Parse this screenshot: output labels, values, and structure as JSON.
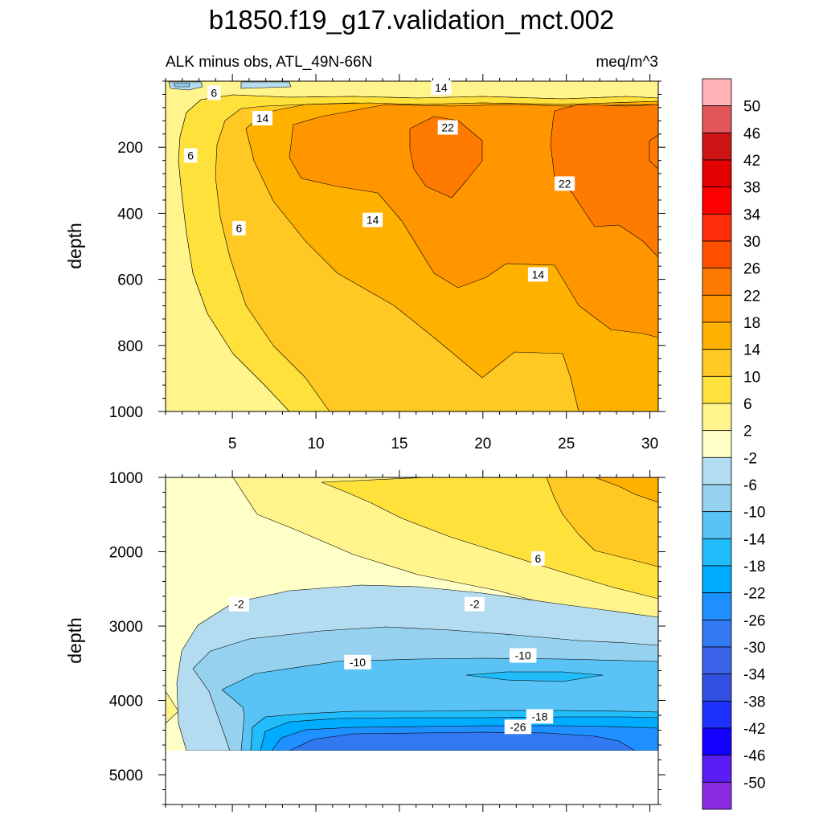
{
  "chart_data": {
    "type": "contour",
    "title": "b1850.f19_g17.validation_mct.002",
    "subtitle_left": "ALK minus obs, ATL_49N-66N",
    "subtitle_right": "meq/m^3",
    "panels": [
      {
        "name": "upper",
        "ylabel": "depth",
        "ylim": [
          0,
          1000
        ],
        "yticks": [
          200,
          400,
          600,
          800,
          1000
        ],
        "xlim": [
          1,
          30.5
        ],
        "xticks": [
          5,
          10,
          15,
          20,
          25,
          30
        ],
        "contour_labels": [
          {
            "text": "6",
            "x": 3.9,
            "y": 35
          },
          {
            "text": "14",
            "x": 17.5,
            "y": 20
          },
          {
            "text": "14",
            "x": 6.8,
            "y": 112
          },
          {
            "text": "22",
            "x": 17.9,
            "y": 140
          },
          {
            "text": "6",
            "x": 2.5,
            "y": 225
          },
          {
            "text": "22",
            "x": 24.9,
            "y": 310
          },
          {
            "text": "14",
            "x": 13.4,
            "y": 420
          },
          {
            "text": "6",
            "x": 5.4,
            "y": 445
          },
          {
            "text": "14",
            "x": 23.3,
            "y": 585
          }
        ]
      },
      {
        "name": "lower",
        "ylabel": "depth",
        "ylim": [
          1000,
          5400
        ],
        "yticks": [
          1000,
          2000,
          3000,
          4000,
          5000
        ],
        "xlim": [
          1,
          30.5
        ],
        "data_bottom_depth": 4650,
        "contour_labels": [
          {
            "text": "6",
            "x": 23.3,
            "y": 2090
          },
          {
            "text": "-2",
            "x": 5.4,
            "y": 2705
          },
          {
            "text": "-2",
            "x": 19.5,
            "y": 2705
          },
          {
            "text": "-10",
            "x": 12.5,
            "y": 3485
          },
          {
            "text": "-10",
            "x": 22.4,
            "y": 3395
          },
          {
            "text": "-18",
            "x": 23.4,
            "y": 4215
          },
          {
            "text": "-26",
            "x": 22.1,
            "y": 4355
          }
        ]
      }
    ],
    "colorbar": {
      "labels": [
        "50",
        "46",
        "42",
        "38",
        "34",
        "30",
        "26",
        "22",
        "18",
        "14",
        "10",
        "6",
        "2",
        "-2",
        "-6",
        "-10",
        "-14",
        "-18",
        "-22",
        "-26",
        "-30",
        "-34",
        "-38",
        "-42",
        "-46",
        "-50"
      ],
      "colors": [
        "#ffb3b6",
        "#e25659",
        "#cc1414",
        "#e30000",
        "#ff0000",
        "#ff2d0a",
        "#ff5000",
        "#ff7a00",
        "#ff9600",
        "#ffb100",
        "#ffc823",
        "#ffe13c",
        "#fff58c",
        "#ffffc8",
        "#b4dcf0",
        "#96d2f0",
        "#5ac3f5",
        "#21bcfa",
        "#00acff",
        "#1e90ff",
        "#3278f0",
        "#3c64eb",
        "#3250e1",
        "#1e32ff",
        "#1400ff",
        "#5a1ef5",
        "#8b2be2"
      ]
    },
    "fill_colors": {
      "c_m26": "#3278f0",
      "c_m22": "#1e90ff",
      "c_m18": "#00acff",
      "c_m14": "#21bcfa",
      "c_m10": "#5ac3f5",
      "c_m6": "#96d2f0",
      "c_m2": "#b4dcf0",
      "c_2": "#ffffc8",
      "c_6": "#fff58c",
      "c_10": "#ffe13c",
      "c_14": "#ffc823",
      "c_18": "#ffb100",
      "c_22": "#ff9600",
      "c_26": "#ff7a00"
    }
  }
}
